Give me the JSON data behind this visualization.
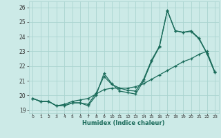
{
  "title": "",
  "xlabel": "Humidex (Indice chaleur)",
  "xlim": [
    -0.5,
    23.5
  ],
  "ylim": [
    18.8,
    26.4
  ],
  "yticks": [
    19,
    20,
    21,
    22,
    23,
    24,
    25,
    26
  ],
  "xticks": [
    0,
    1,
    2,
    3,
    4,
    5,
    6,
    7,
    8,
    9,
    10,
    11,
    12,
    13,
    14,
    15,
    16,
    17,
    18,
    19,
    20,
    21,
    22,
    23
  ],
  "background_color": "#cceae7",
  "grid_color": "#aad4d0",
  "line_color": "#1a6b5a",
  "line1_y": [
    19.8,
    19.6,
    19.6,
    19.3,
    19.3,
    19.5,
    19.5,
    19.3,
    20.0,
    21.5,
    20.8,
    20.3,
    20.2,
    20.1,
    21.0,
    22.3,
    23.3,
    25.8,
    24.4,
    24.3,
    24.4,
    23.9,
    22.9,
    21.6
  ],
  "line2_y": [
    19.8,
    19.6,
    19.6,
    19.3,
    19.3,
    19.5,
    19.5,
    19.4,
    20.15,
    21.3,
    20.75,
    20.5,
    20.35,
    20.3,
    21.1,
    22.4,
    23.35,
    25.75,
    24.4,
    24.3,
    24.35,
    23.85,
    22.85,
    21.55
  ],
  "line3_y": [
    19.8,
    19.6,
    19.6,
    19.3,
    19.4,
    19.6,
    19.7,
    19.8,
    20.1,
    20.4,
    20.5,
    20.5,
    20.5,
    20.6,
    20.8,
    21.1,
    21.4,
    21.7,
    22.0,
    22.3,
    22.5,
    22.8,
    23.0,
    21.6
  ]
}
